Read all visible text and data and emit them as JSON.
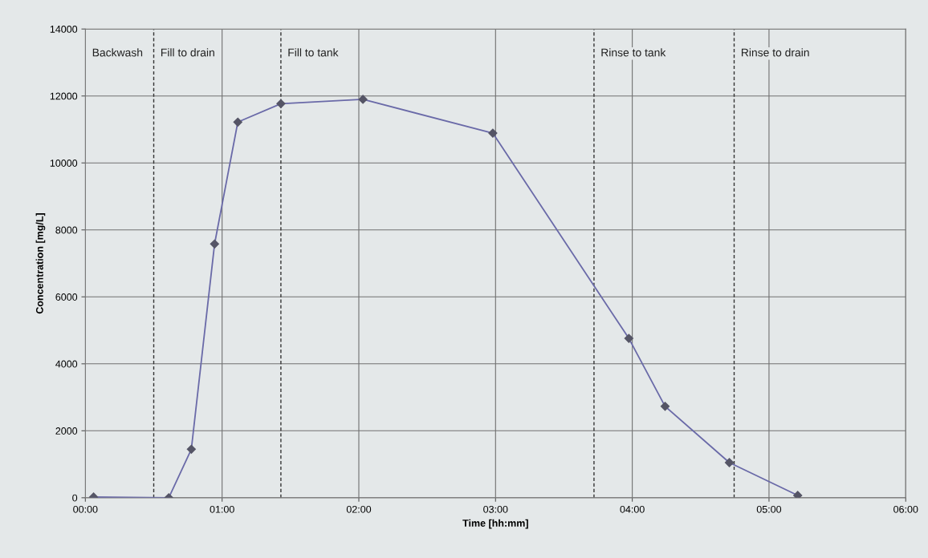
{
  "chart_data": {
    "type": "line",
    "xlabel": "Time [hh:mm]",
    "ylabel": "Concentration [mg/L]",
    "x": [
      0.06,
      0.61,
      0.775,
      0.945,
      1.115,
      1.43,
      2.03,
      2.98,
      3.975,
      4.24,
      4.71,
      5.21
    ],
    "series": [
      {
        "color": "#6a6aa8",
        "values": [
          20,
          0,
          1450,
          7580,
          11220,
          11770,
          11900,
          10890,
          4760,
          2730,
          1050,
          70
        ]
      }
    ],
    "xlim": [
      0,
      6
    ],
    "xticks": [
      {
        "value": 0,
        "label": "00:00"
      },
      {
        "value": 1,
        "label": "01:00"
      },
      {
        "value": 2,
        "label": "02:00"
      },
      {
        "value": 3,
        "label": "03:00"
      },
      {
        "value": 4,
        "label": "04:00"
      },
      {
        "value": 5,
        "label": "05:00"
      },
      {
        "value": 6,
        "label": "06:00"
      }
    ],
    "ylim": [
      0,
      14000
    ],
    "yticks": [
      0,
      2000,
      4000,
      6000,
      8000,
      10000,
      12000,
      14000
    ],
    "grid": true,
    "marker": "diamond",
    "line_style": "solid",
    "ref_lines": [
      {
        "axis": "x",
        "value": 0.5,
        "color": "#333333",
        "line_style": "dashed"
      },
      {
        "axis": "x",
        "value": 1.43,
        "color": "#333333",
        "line_style": "dashed"
      },
      {
        "axis": "x",
        "value": 3.72,
        "color": "#333333",
        "line_style": "dashed"
      },
      {
        "axis": "x",
        "value": 4.745,
        "color": "#333333",
        "line_style": "dashed"
      }
    ],
    "annotations": [
      "Backwash",
      "Fill to drain",
      "Fill to tank",
      "Rinse to tank",
      "Rinse to drain"
    ]
  }
}
